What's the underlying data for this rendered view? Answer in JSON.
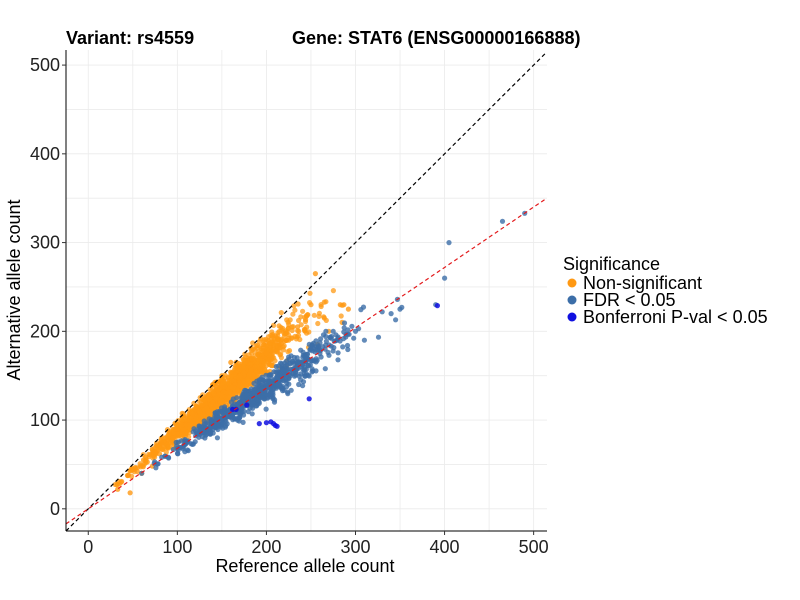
{
  "chart_data": {
    "type": "scatter",
    "title_left": "Variant: rs4559",
    "title_right": "Gene: STAT6 (ENSG00000166888)",
    "xlabel": "Reference allele count",
    "ylabel": "Alternative allele count",
    "xlim": [
      -25,
      515
    ],
    "ylim": [
      -25,
      517
    ],
    "xticks": [
      0,
      100,
      200,
      300,
      400,
      500
    ],
    "yticks": [
      0,
      100,
      200,
      300,
      400,
      500
    ],
    "grid": true,
    "legend": {
      "title": "Significance",
      "position": "right",
      "items": [
        {
          "label": "Non-significant",
          "color": "#FF9913"
        },
        {
          "label": "FDR < 0.05",
          "color": "#3C6EA8"
        },
        {
          "label": "Bonferroni P-val < 0.05",
          "color": "#1010E0"
        }
      ]
    },
    "reference_lines": [
      {
        "name": "identity",
        "slope": 1.0,
        "intercept": 0,
        "color": "#000000",
        "dash": "dashed"
      },
      {
        "name": "fit",
        "slope": 0.68,
        "intercept": 0,
        "color": "#E31A1C",
        "dash": "dashed"
      }
    ],
    "series": [
      {
        "name": "Non-significant",
        "color": "#FF9913",
        "n_generated": 1500,
        "description": "Dense cloud near the identity line; reference roughly 25-290, alternative ratio ~0.72-1.0",
        "points": [
          [
            33,
            22
          ],
          [
            37,
            30
          ],
          [
            45,
            38
          ],
          [
            47,
            18
          ],
          [
            55,
            42
          ],
          [
            60,
            40
          ],
          [
            62,
            55
          ],
          [
            72,
            48
          ],
          [
            80,
            62
          ],
          [
            82,
            74
          ],
          [
            95,
            80
          ],
          [
            98,
            90
          ],
          [
            110,
            95
          ],
          [
            120,
            112
          ],
          [
            140,
            120
          ],
          [
            150,
            150
          ],
          [
            160,
            165
          ],
          [
            165,
            140
          ],
          [
            175,
            150
          ],
          [
            185,
            180
          ],
          [
            200,
            175
          ],
          [
            210,
            195
          ],
          [
            215,
            185
          ],
          [
            225,
            190
          ],
          [
            235,
            205
          ],
          [
            250,
            230
          ],
          [
            255,
            265
          ],
          [
            265,
            215
          ],
          [
            270,
            200
          ],
          [
            283,
            230
          ],
          [
            285,
            210
          ],
          [
            287,
            230
          ],
          [
            292,
            225
          ]
        ]
      },
      {
        "name": "FDR < 0.05",
        "color": "#3C6EA8",
        "n_generated": 700,
        "description": "Points below the identity line; reference roughly 60-490, alternative ratio ~0.55-0.72",
        "points": [
          [
            60,
            40
          ],
          [
            90,
            58
          ],
          [
            100,
            68
          ],
          [
            130,
            95
          ],
          [
            145,
            80
          ],
          [
            150,
            95
          ],
          [
            170,
            115
          ],
          [
            180,
            125
          ],
          [
            200,
            138
          ],
          [
            215,
            145
          ],
          [
            240,
            165
          ],
          [
            260,
            175
          ],
          [
            275,
            200
          ],
          [
            300,
            200
          ],
          [
            310,
            190
          ],
          [
            330,
            222
          ],
          [
            340,
            220
          ],
          [
            345,
            213
          ],
          [
            347,
            236
          ],
          [
            350,
            225
          ],
          [
            352,
            227
          ],
          [
            390,
            230
          ],
          [
            400,
            260
          ],
          [
            405,
            300
          ],
          [
            465,
            324
          ],
          [
            490,
            333
          ]
        ]
      },
      {
        "name": "Bonferroni P-val < 0.05",
        "color": "#1010E0",
        "points": [
          [
            162,
            112
          ],
          [
            166,
            112
          ],
          [
            178,
            117
          ],
          [
            192,
            96
          ],
          [
            200,
            97
          ],
          [
            205,
            98
          ],
          [
            208,
            96
          ],
          [
            210,
            94
          ],
          [
            212,
            93
          ],
          [
            248,
            124
          ],
          [
            392,
            229
          ]
        ]
      }
    ]
  }
}
